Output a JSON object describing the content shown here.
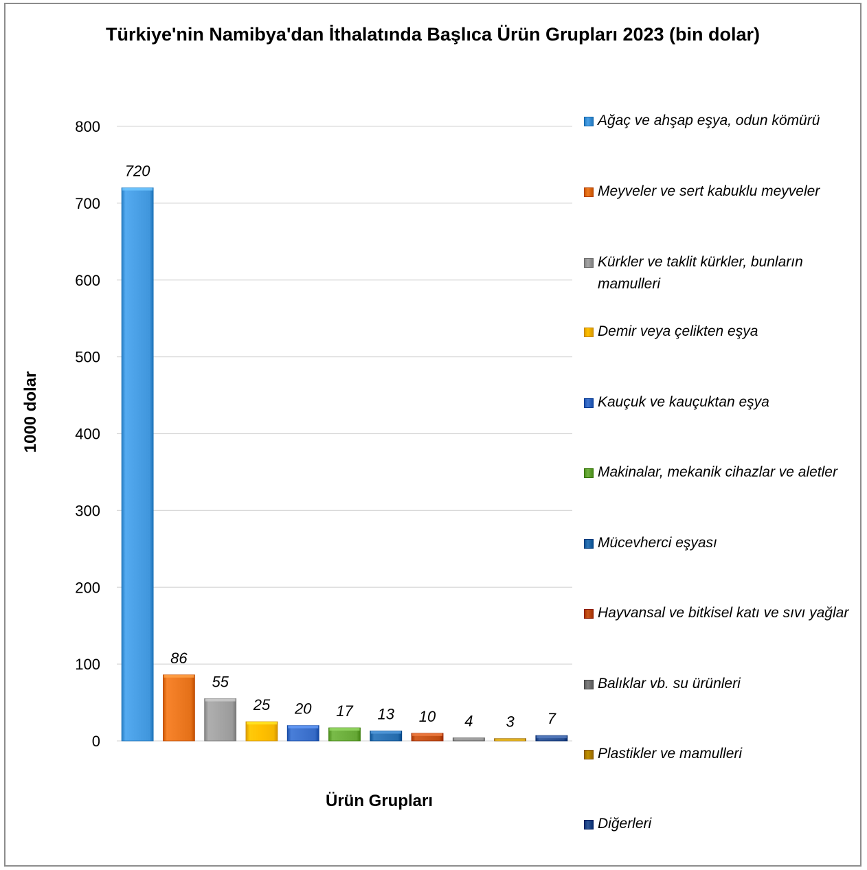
{
  "chart_data": {
    "type": "bar",
    "title": "Türkiye'nin Namibya'dan İthalatında Başlıca Ürün Grupları 2023 (bin dolar)",
    "xlabel": "Ürün Grupları",
    "ylabel": "1000 dolar",
    "ylim": [
      0,
      800
    ],
    "yticks": [
      0,
      100,
      200,
      300,
      400,
      500,
      600,
      700,
      800
    ],
    "grid": true,
    "legend_position": "right",
    "categories": [
      "Ağaç ve ahşap eşya, odun kömürü",
      "Meyveler ve sert kabuklu meyveler",
      "Kürkler ve taklit kürkler, bunların mamulleri",
      "Demir veya çelikten eşya",
      "Kauçuk ve kauçuktan eşya",
      "Makinalar, mekanik cihazlar ve aletler",
      "Mücevherci eşyası",
      "Hayvansal ve bitkisel katı ve sıvı yağlar",
      "Balıklar vb. su ürünleri",
      "Plastikler ve mamulleri",
      "Diğerleri"
    ],
    "values": [
      720,
      86,
      55,
      25,
      20,
      17,
      13,
      10,
      4,
      3,
      7
    ],
    "colors": [
      "#4aa0e6",
      "#ee7a22",
      "#a5a5a5",
      "#ffc000",
      "#3f74cf",
      "#6fb13f",
      "#2e75b6",
      "#c9561b",
      "#7f7f7f",
      "#bf9000",
      "#2f5597"
    ]
  }
}
